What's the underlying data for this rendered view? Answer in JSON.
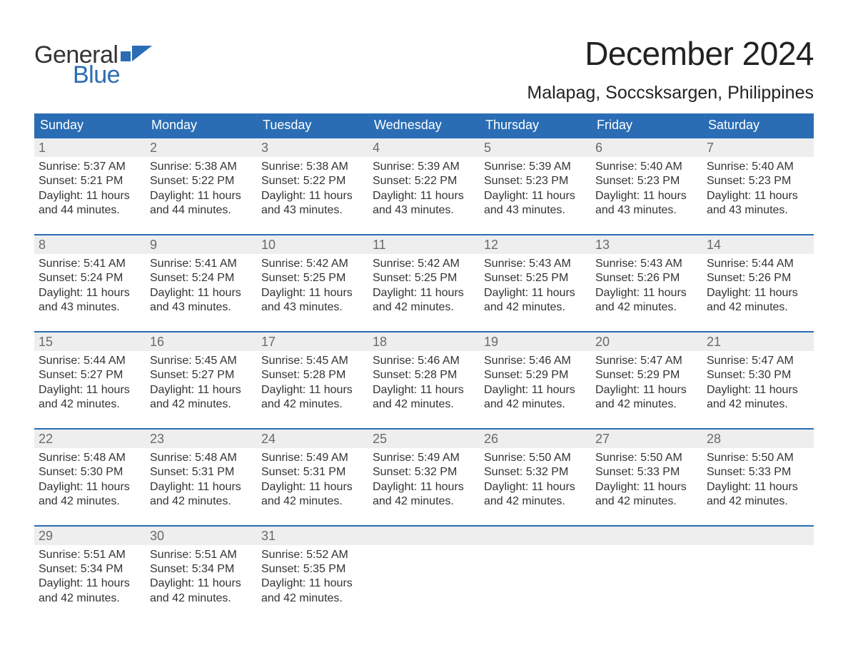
{
  "brand": {
    "part1": "General",
    "part2": "Blue",
    "flag_color": "#2a6db4"
  },
  "title": "December 2024",
  "location": "Malapag, Soccsksargen, Philippines",
  "colors": {
    "header_bg": "#2a6db4",
    "header_text": "#ffffff",
    "daynum_bg": "#eeeeee",
    "daynum_text": "#6a6a6a",
    "body_text": "#333333",
    "rule": "#2a6db4",
    "background": "#ffffff"
  },
  "weekdays": [
    "Sunday",
    "Monday",
    "Tuesday",
    "Wednesday",
    "Thursday",
    "Friday",
    "Saturday"
  ],
  "layout": {
    "type": "calendar-grid",
    "columns": 7,
    "rows": 5,
    "cell_fontsize_pt": 12,
    "title_fontsize_pt": 34,
    "location_fontsize_pt": 19,
    "weekday_fontsize_pt": 14
  },
  "weeks": [
    [
      {
        "day": "1",
        "sunrise": "Sunrise: 5:37 AM",
        "sunset": "Sunset: 5:21 PM",
        "d1": "Daylight: 11 hours",
        "d2": "and 44 minutes."
      },
      {
        "day": "2",
        "sunrise": "Sunrise: 5:38 AM",
        "sunset": "Sunset: 5:22 PM",
        "d1": "Daylight: 11 hours",
        "d2": "and 44 minutes."
      },
      {
        "day": "3",
        "sunrise": "Sunrise: 5:38 AM",
        "sunset": "Sunset: 5:22 PM",
        "d1": "Daylight: 11 hours",
        "d2": "and 43 minutes."
      },
      {
        "day": "4",
        "sunrise": "Sunrise: 5:39 AM",
        "sunset": "Sunset: 5:22 PM",
        "d1": "Daylight: 11 hours",
        "d2": "and 43 minutes."
      },
      {
        "day": "5",
        "sunrise": "Sunrise: 5:39 AM",
        "sunset": "Sunset: 5:23 PM",
        "d1": "Daylight: 11 hours",
        "d2": "and 43 minutes."
      },
      {
        "day": "6",
        "sunrise": "Sunrise: 5:40 AM",
        "sunset": "Sunset: 5:23 PM",
        "d1": "Daylight: 11 hours",
        "d2": "and 43 minutes."
      },
      {
        "day": "7",
        "sunrise": "Sunrise: 5:40 AM",
        "sunset": "Sunset: 5:23 PM",
        "d1": "Daylight: 11 hours",
        "d2": "and 43 minutes."
      }
    ],
    [
      {
        "day": "8",
        "sunrise": "Sunrise: 5:41 AM",
        "sunset": "Sunset: 5:24 PM",
        "d1": "Daylight: 11 hours",
        "d2": "and 43 minutes."
      },
      {
        "day": "9",
        "sunrise": "Sunrise: 5:41 AM",
        "sunset": "Sunset: 5:24 PM",
        "d1": "Daylight: 11 hours",
        "d2": "and 43 minutes."
      },
      {
        "day": "10",
        "sunrise": "Sunrise: 5:42 AM",
        "sunset": "Sunset: 5:25 PM",
        "d1": "Daylight: 11 hours",
        "d2": "and 43 minutes."
      },
      {
        "day": "11",
        "sunrise": "Sunrise: 5:42 AM",
        "sunset": "Sunset: 5:25 PM",
        "d1": "Daylight: 11 hours",
        "d2": "and 42 minutes."
      },
      {
        "day": "12",
        "sunrise": "Sunrise: 5:43 AM",
        "sunset": "Sunset: 5:25 PM",
        "d1": "Daylight: 11 hours",
        "d2": "and 42 minutes."
      },
      {
        "day": "13",
        "sunrise": "Sunrise: 5:43 AM",
        "sunset": "Sunset: 5:26 PM",
        "d1": "Daylight: 11 hours",
        "d2": "and 42 minutes."
      },
      {
        "day": "14",
        "sunrise": "Sunrise: 5:44 AM",
        "sunset": "Sunset: 5:26 PM",
        "d1": "Daylight: 11 hours",
        "d2": "and 42 minutes."
      }
    ],
    [
      {
        "day": "15",
        "sunrise": "Sunrise: 5:44 AM",
        "sunset": "Sunset: 5:27 PM",
        "d1": "Daylight: 11 hours",
        "d2": "and 42 minutes."
      },
      {
        "day": "16",
        "sunrise": "Sunrise: 5:45 AM",
        "sunset": "Sunset: 5:27 PM",
        "d1": "Daylight: 11 hours",
        "d2": "and 42 minutes."
      },
      {
        "day": "17",
        "sunrise": "Sunrise: 5:45 AM",
        "sunset": "Sunset: 5:28 PM",
        "d1": "Daylight: 11 hours",
        "d2": "and 42 minutes."
      },
      {
        "day": "18",
        "sunrise": "Sunrise: 5:46 AM",
        "sunset": "Sunset: 5:28 PM",
        "d1": "Daylight: 11 hours",
        "d2": "and 42 minutes."
      },
      {
        "day": "19",
        "sunrise": "Sunrise: 5:46 AM",
        "sunset": "Sunset: 5:29 PM",
        "d1": "Daylight: 11 hours",
        "d2": "and 42 minutes."
      },
      {
        "day": "20",
        "sunrise": "Sunrise: 5:47 AM",
        "sunset": "Sunset: 5:29 PM",
        "d1": "Daylight: 11 hours",
        "d2": "and 42 minutes."
      },
      {
        "day": "21",
        "sunrise": "Sunrise: 5:47 AM",
        "sunset": "Sunset: 5:30 PM",
        "d1": "Daylight: 11 hours",
        "d2": "and 42 minutes."
      }
    ],
    [
      {
        "day": "22",
        "sunrise": "Sunrise: 5:48 AM",
        "sunset": "Sunset: 5:30 PM",
        "d1": "Daylight: 11 hours",
        "d2": "and 42 minutes."
      },
      {
        "day": "23",
        "sunrise": "Sunrise: 5:48 AM",
        "sunset": "Sunset: 5:31 PM",
        "d1": "Daylight: 11 hours",
        "d2": "and 42 minutes."
      },
      {
        "day": "24",
        "sunrise": "Sunrise: 5:49 AM",
        "sunset": "Sunset: 5:31 PM",
        "d1": "Daylight: 11 hours",
        "d2": "and 42 minutes."
      },
      {
        "day": "25",
        "sunrise": "Sunrise: 5:49 AM",
        "sunset": "Sunset: 5:32 PM",
        "d1": "Daylight: 11 hours",
        "d2": "and 42 minutes."
      },
      {
        "day": "26",
        "sunrise": "Sunrise: 5:50 AM",
        "sunset": "Sunset: 5:32 PM",
        "d1": "Daylight: 11 hours",
        "d2": "and 42 minutes."
      },
      {
        "day": "27",
        "sunrise": "Sunrise: 5:50 AM",
        "sunset": "Sunset: 5:33 PM",
        "d1": "Daylight: 11 hours",
        "d2": "and 42 minutes."
      },
      {
        "day": "28",
        "sunrise": "Sunrise: 5:50 AM",
        "sunset": "Sunset: 5:33 PM",
        "d1": "Daylight: 11 hours",
        "d2": "and 42 minutes."
      }
    ],
    [
      {
        "day": "29",
        "sunrise": "Sunrise: 5:51 AM",
        "sunset": "Sunset: 5:34 PM",
        "d1": "Daylight: 11 hours",
        "d2": "and 42 minutes."
      },
      {
        "day": "30",
        "sunrise": "Sunrise: 5:51 AM",
        "sunset": "Sunset: 5:34 PM",
        "d1": "Daylight: 11 hours",
        "d2": "and 42 minutes."
      },
      {
        "day": "31",
        "sunrise": "Sunrise: 5:52 AM",
        "sunset": "Sunset: 5:35 PM",
        "d1": "Daylight: 11 hours",
        "d2": "and 42 minutes."
      },
      null,
      null,
      null,
      null
    ]
  ]
}
